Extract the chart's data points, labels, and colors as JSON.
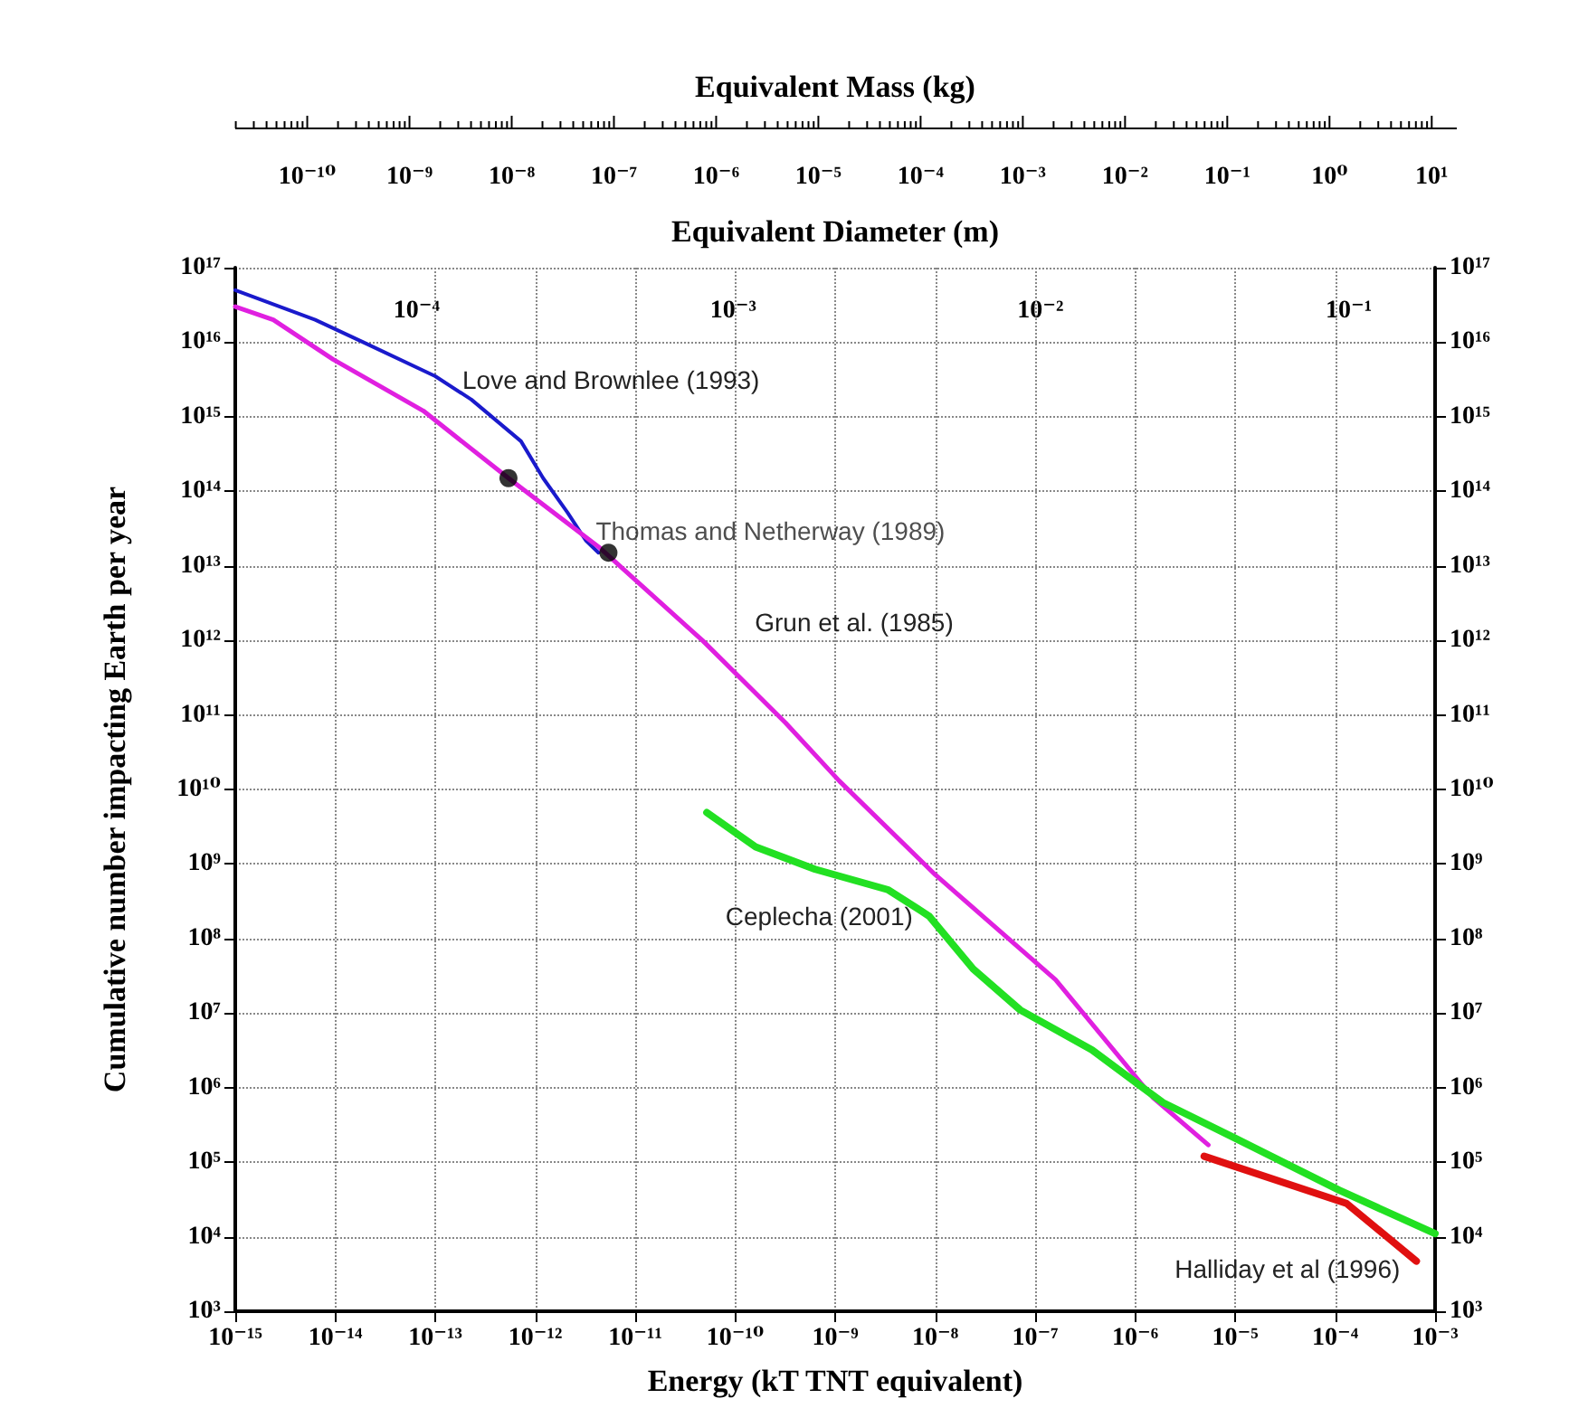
{
  "chart_data": {
    "type": "line",
    "xlabel": "Energy (kT TNT equivalent)",
    "ylabel": "Cumulative number impacting Earth per year",
    "annotations": [
      "Equivalent Mass (kg)",
      "10⁻¹⁰",
      "10⁻⁹",
      "10⁻⁸",
      "10⁻⁷",
      "10⁻⁶",
      "10⁻⁵",
      "10⁻⁴",
      "10⁻³",
      "10⁻²",
      "10⁻¹",
      "10⁰",
      "10¹",
      "Equivalent Diameter (m)",
      "10⁻⁴",
      "10⁻³",
      "10⁻²",
      "10⁻¹"
    ],
    "log": "xy",
    "grid": true,
    "xlim": [
      1e-15,
      0.001
    ],
    "ylim": [
      1000.0,
      1e+17
    ],
    "xticks": [
      {
        "value": 1e-15,
        "label": "10⁻¹⁵"
      },
      {
        "value": 1e-14,
        "label": "10⁻¹⁴"
      },
      {
        "value": 1e-13,
        "label": "10⁻¹³"
      },
      {
        "value": 1e-12,
        "label": "10⁻¹²"
      },
      {
        "value": 1e-11,
        "label": "10⁻¹¹"
      },
      {
        "value": 1e-10,
        "label": "10⁻¹⁰"
      },
      {
        "value": 1e-09,
        "label": "10⁻⁹"
      },
      {
        "value": 1e-08,
        "label": "10⁻⁸"
      },
      {
        "value": 1e-07,
        "label": "10⁻⁷"
      },
      {
        "value": 1e-06,
        "label": "10⁻⁶"
      },
      {
        "value": 1e-05,
        "label": "10⁻⁵"
      },
      {
        "value": 0.0001,
        "label": "10⁻⁴"
      },
      {
        "value": 0.001,
        "label": "10⁻³"
      }
    ],
    "yticks": [
      {
        "value": 1000.0,
        "label": "10³"
      },
      {
        "value": 10000.0,
        "label": "10⁴"
      },
      {
        "value": 100000.0,
        "label": "10⁵"
      },
      {
        "value": 1000000.0,
        "label": "10⁶"
      },
      {
        "value": 10000000.0,
        "label": "10⁷"
      },
      {
        "value": 100000000.0,
        "label": "10⁸"
      },
      {
        "value": 1000000000.0,
        "label": "10⁹"
      },
      {
        "value": 10000000000.0,
        "label": "10¹⁰"
      },
      {
        "value": 100000000000.0,
        "label": "10¹¹"
      },
      {
        "value": 1000000000000.0,
        "label": "10¹²"
      },
      {
        "value": 10000000000000.0,
        "label": "10¹³"
      },
      {
        "value": 100000000000000.0,
        "label": "10¹⁴"
      },
      {
        "value": 1000000000000000.0,
        "label": "10¹⁵"
      },
      {
        "value": 1e+16,
        "label": "10¹⁶"
      },
      {
        "value": 1e+17,
        "label": "10¹⁷"
      }
    ],
    "series": [
      {
        "name": "Love and Brownlee (1993)",
        "color": "#1a1acc",
        "x": [
          1e-15,
          6.3e-15,
          1.9e-14,
          1e-13,
          2.3e-13,
          7.2e-13,
          1.2e-12,
          2.1e-12,
          3.2e-12,
          4.3e-12
        ],
        "values": [
          5e+16,
          2e+16,
          1e+16,
          3500000000000000.0,
          1700000000000000.0,
          470000000000000.0,
          150000000000000.0,
          52000000000000.0,
          22000000000000.0,
          15000000000000.0
        ]
      },
      {
        "name": "Grun et al. (1985)",
        "color": "#e020e0",
        "x": [
          1e-15,
          2.4e-15,
          9.5e-15,
          7.6e-14,
          5.4e-13,
          4.3e-12,
          4.7e-11,
          3.2e-10,
          1.1e-09,
          1e-08,
          1.6e-07,
          1.5e-06,
          5.4e-06
        ],
        "values": [
          3e+16,
          2e+16,
          5900000000000000.0,
          1200000000000000.0,
          150000000000000.0,
          18000000000000.0,
          1000000000000.0,
          78000000000.0,
          13000000000.0,
          720000000.0,
          28000000.0,
          740000.0,
          170000.0
        ]
      },
      {
        "name": "Ceplecha (2001)",
        "color": "#22e022",
        "x": [
          5.2e-11,
          1.6e-10,
          6.3e-10,
          3.4e-09,
          8.7e-09,
          2.4e-08,
          7.1e-08,
          3.7e-07,
          1.9e-06,
          1e-05,
          0.00011,
          0.001
        ],
        "values": [
          4900000000.0,
          1700000000.0,
          850000000.0,
          450000000.0,
          200000000.0,
          39000000.0,
          11000000.0,
          3200000.0,
          630000.0,
          210000.0,
          42000.0,
          11000.0
        ]
      },
      {
        "name": "Halliday et al (1996)",
        "color": "#e01010",
        "x": [
          4.9e-06,
          0.00013,
          0.00065
        ],
        "values": [
          120000.0,
          28000.0,
          4700.0
        ]
      },
      {
        "name": "Thomas and Netherway (1989)",
        "type": "scatter",
        "marker": "circle",
        "color": "#000000",
        "x": [
          5.4e-13,
          5.4e-12
        ],
        "values": [
          150000000000000.0,
          15000000000000.0
        ]
      }
    ]
  }
}
